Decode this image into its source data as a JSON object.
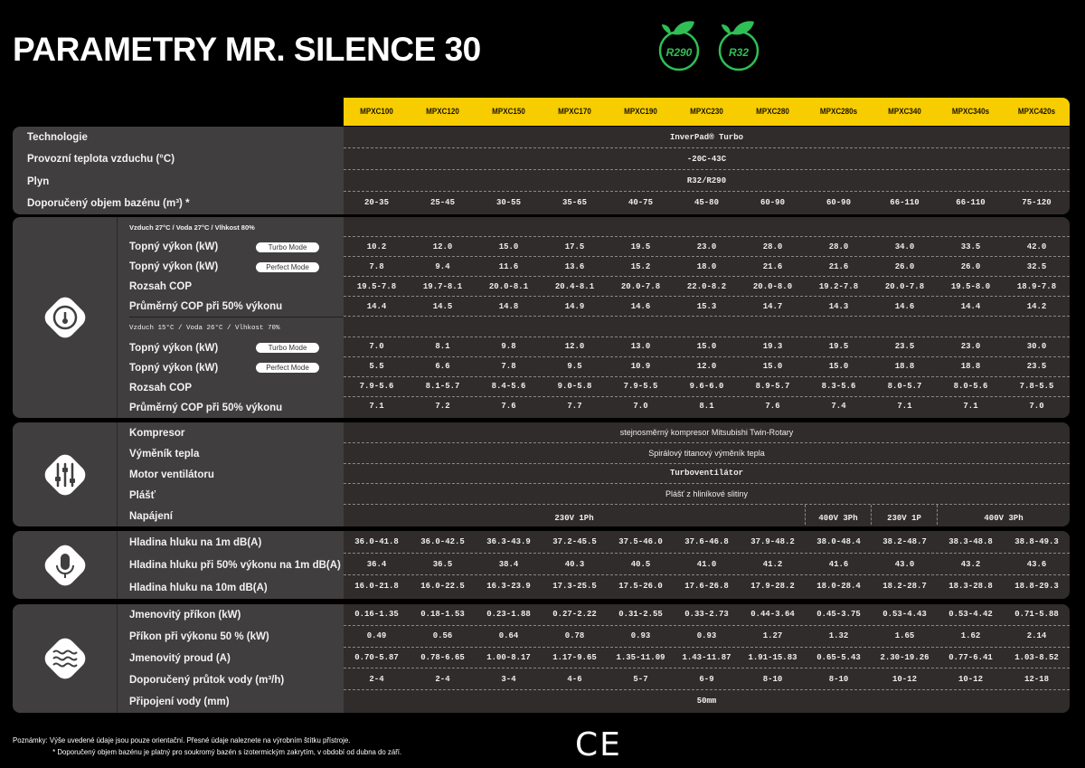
{
  "title": "PARAMETRY MR. SILENCE 30",
  "refrigerant_logos": [
    "R290",
    "R32"
  ],
  "brand_green": "#2fbf55",
  "accent_yellow": "#f7cd00",
  "models": [
    "MPXC100",
    "MPXC120",
    "MPXC150",
    "MPXC170",
    "MPXC190",
    "MPXC230",
    "MPXC280",
    "MPXC280s",
    "MPXC340",
    "MPXC340s",
    "MPXC420s"
  ],
  "sections": [
    {
      "icon": "none",
      "rows": [
        {
          "label": "Technologie",
          "span": "InverPad® Turbo"
        },
        {
          "label": "Provozní teplota vzduchu (°C)",
          "span": "-20C-43C"
        },
        {
          "label": "Plyn",
          "span": "R32/R290"
        },
        {
          "label": "Doporučený objem bazénu (m³) *",
          "values": [
            "20-35",
            "25-45",
            "30-55",
            "35-65",
            "40-75",
            "45-80",
            "60-90",
            "60-90",
            "66-110",
            "66-110",
            "75-120"
          ]
        }
      ]
    },
    {
      "icon": "gauge-icon",
      "rows": [
        {
          "sublabel": "Vzduch 27°C / Voda 27°C / Vlhkost 80%"
        },
        {
          "label": "Topný výkon (kW)",
          "badge": "Turbo Mode",
          "values": [
            "10.2",
            "12.0",
            "15.0",
            "17.5",
            "19.5",
            "23.0",
            "28.0",
            "28.0",
            "34.0",
            "33.5",
            "42.0"
          ]
        },
        {
          "label": "Topný výkon (kW)",
          "badge": "Perfect Mode",
          "values": [
            "7.8",
            "9.4",
            "11.6",
            "13.6",
            "15.2",
            "18.0",
            "21.6",
            "21.6",
            "26.0",
            "26.0",
            "32.5"
          ]
        },
        {
          "label": "Rozsah COP",
          "values": [
            "19.5-7.8",
            "19.7-8.1",
            "20.0-8.1",
            "20.4-8.1",
            "20.0-7.8",
            "22.0-8.2",
            "20.0-8.0",
            "19.2-7.8",
            "20.0-7.8",
            "19.5-8.0",
            "18.9-7.8"
          ]
        },
        {
          "label": "Průměrný COP při 50% výkonu",
          "values": [
            "14.4",
            "14.5",
            "14.8",
            "14.9",
            "14.6",
            "15.3",
            "14.7",
            "14.3",
            "14.6",
            "14.4",
            "14.2"
          ]
        },
        {
          "sublabel": "Vzduch 15°C / Voda 26°C / Vlhkost 70%",
          "mono": true
        },
        {
          "label": "Topný výkon (kW)",
          "badge": "Turbo Mode",
          "values": [
            "7.0",
            "8.1",
            "9.8",
            "12.0",
            "13.0",
            "15.0",
            "19.3",
            "19.5",
            "23.5",
            "23.0",
            "30.0"
          ]
        },
        {
          "label": "Topný výkon (kW)",
          "badge": "Perfect Mode",
          "values": [
            "5.5",
            "6.6",
            "7.8",
            "9.5",
            "10.9",
            "12.0",
            "15.0",
            "15.0",
            "18.8",
            "18.8",
            "23.5"
          ]
        },
        {
          "label": "Rozsah COP",
          "values": [
            "7.9-5.6",
            "8.1-5.7",
            "8.4-5.6",
            "9.0-5.8",
            "7.9-5.5",
            "9.6-6.0",
            "8.9-5.7",
            "8.3-5.6",
            "8.0-5.7",
            "8.0-5.6",
            "7.8-5.5"
          ]
        },
        {
          "label": "Průměrný COP při 50% výkonu",
          "values": [
            "7.1",
            "7.2",
            "7.6",
            "7.7",
            "7.0",
            "8.1",
            "7.6",
            "7.4",
            "7.1",
            "7.1",
            "7.0"
          ]
        }
      ]
    },
    {
      "icon": "sliders-icon",
      "rows": [
        {
          "label": "Kompresor",
          "span": "stejnosměrný kompresor Mitsubishi Twin-Rotary",
          "sans": true
        },
        {
          "label": "Výměník tepla",
          "span": "Spirálový titanový výměník tepla",
          "sans": true
        },
        {
          "label": "Motor ventilátoru",
          "span": "Turboventilátor"
        },
        {
          "label": "Plášť",
          "span": "Plášť z hliníkové slitiny",
          "sans": true
        },
        {
          "label": "Napájení",
          "segments": [
            {
              "text": "230V 1Ph",
              "cols": 7
            },
            {
              "text": "400V 3Ph",
              "cols": 1
            },
            {
              "text": "230V 1P",
              "cols": 1
            },
            {
              "text": "400V 3Ph",
              "cols": 2
            }
          ]
        }
      ]
    },
    {
      "icon": "microphone-icon",
      "rows": [
        {
          "label": "Hladina hluku na 1m dB(A)",
          "values": [
            "36.0-41.8",
            "36.0-42.5",
            "36.3-43.9",
            "37.2-45.5",
            "37.5-46.0",
            "37.6-46.8",
            "37.9-48.2",
            "38.0-48.4",
            "38.2-48.7",
            "38.3-48.8",
            "38.8-49.3"
          ]
        },
        {
          "label": "Hladina hluku při 50% výkonu na 1m dB(A)",
          "values": [
            "36.4",
            "36.5",
            "38.4",
            "40.3",
            "40.5",
            "41.0",
            "41.2",
            "41.6",
            "43.0",
            "43.2",
            "43.6"
          ]
        },
        {
          "label": "Hladina hluku na 10m dB(A)",
          "values": [
            "16.0-21.8",
            "16.0-22.5",
            "16.3-23.9",
            "17.3-25.5",
            "17.5-26.0",
            "17.6-26.8",
            "17.9-28.2",
            "18.0-28.4",
            "18.2-28.7",
            "18.3-28.8",
            "18.8-29.3"
          ]
        }
      ]
    },
    {
      "icon": "water-waves-icon",
      "rows": [
        {
          "label": "Jmenovitý příkon (kW)",
          "values": [
            "0.16-1.35",
            "0.18-1.53",
            "0.23-1.88",
            "0.27-2.22",
            "0.31-2.55",
            "0.33-2.73",
            "0.44-3.64",
            "0.45-3.75",
            "0.53-4.43",
            "0.53-4.42",
            "0.71-5.88"
          ]
        },
        {
          "label": "Příkon při výkonu 50 % (kW)",
          "values": [
            "0.49",
            "0.56",
            "0.64",
            "0.78",
            "0.93",
            "0.93",
            "1.27",
            "1.32",
            "1.65",
            "1.62",
            "2.14"
          ]
        },
        {
          "label": "Jmenovitý proud (A)",
          "values": [
            "0.70-5.87",
            "0.78-6.65",
            "1.00-8.17",
            "1.17-9.65",
            "1.35-11.09",
            "1.43-11.87",
            "1.91-15.83",
            "0.65-5.43",
            "2.30-19.26",
            "0.77-6.41",
            "1.03-8.52"
          ]
        },
        {
          "label": "Doporučený průtok vody (m³/h)",
          "values": [
            "2-4",
            "2-4",
            "3-4",
            "4-6",
            "5-7",
            "6-9",
            "8-10",
            "8-10",
            "10-12",
            "10-12",
            "12-18"
          ]
        },
        {
          "label": "Připojení vody (mm)",
          "span": "50mm"
        }
      ]
    }
  ],
  "notes": {
    "line1": "Poznámky:  Výše uvedené údaje jsou pouze orientační. Přesné údaje naleznete na výrobním štítku přístroje.",
    "line2": "* Doporučený objem bazénu je platný pro soukromý bazén s izotermickým zakrytím, v období od dubna do září."
  },
  "certification": "CE"
}
